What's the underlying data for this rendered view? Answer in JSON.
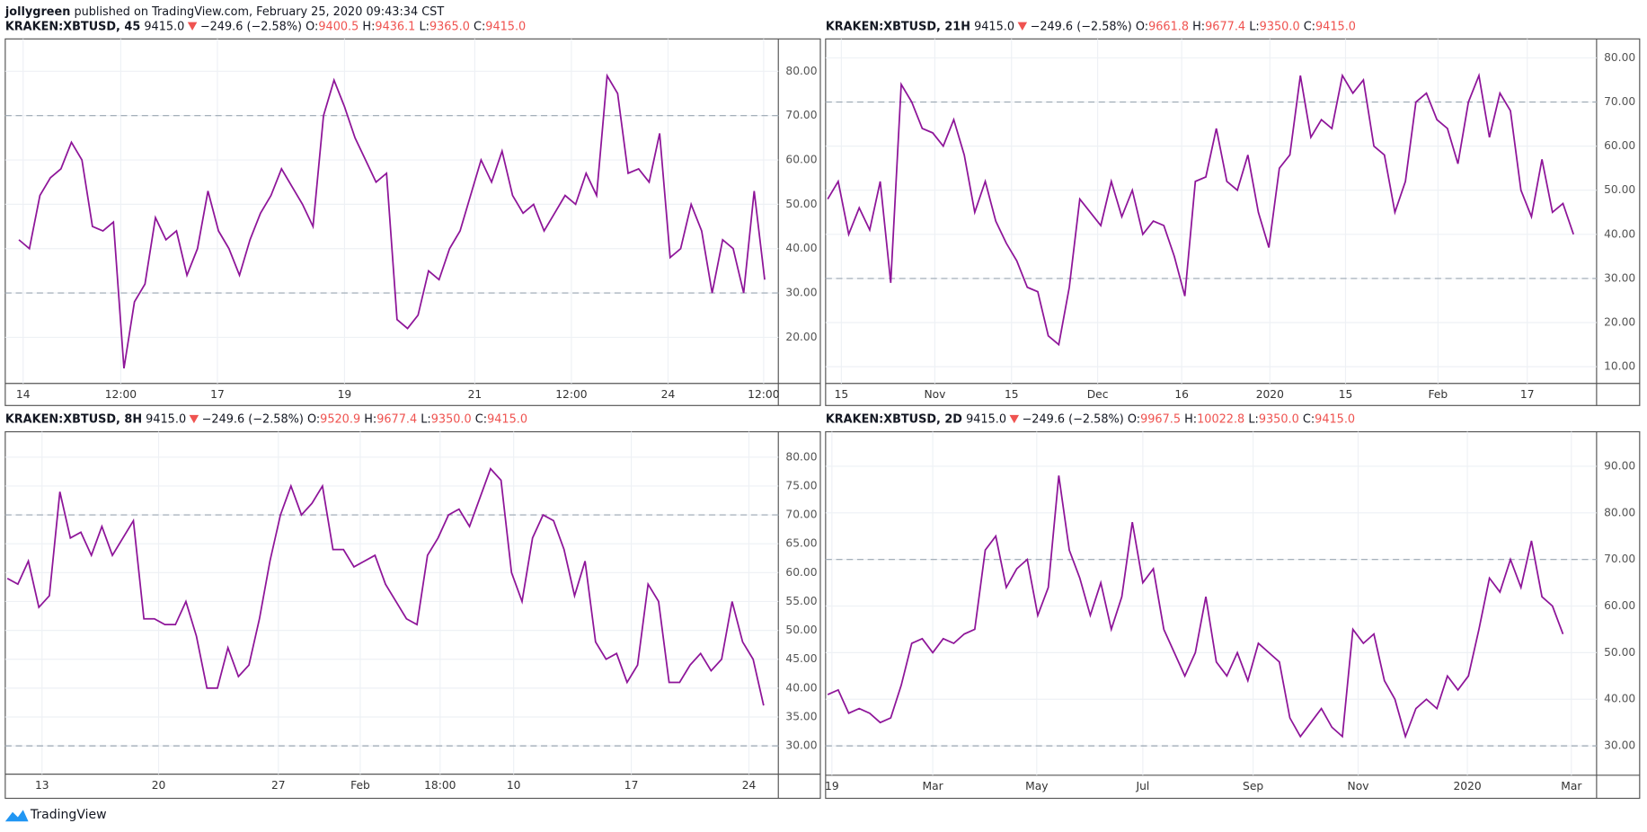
{
  "author": "jollygreen",
  "published": "published on TradingView.com, February 25, 2020 09:43:34 CST",
  "brand": "TradingView",
  "chart_data": [
    {
      "type": "line",
      "header": {
        "symbol": "KRAKEN:XBTUSD, 45",
        "price": "9415.0",
        "change": "−249.6 (−2.58%)",
        "ohlc": [
          {
            "label": "O:",
            "value": "9400.5"
          },
          {
            "label": "H:",
            "value": "9436.1"
          },
          {
            "label": "L:",
            "value": "9365.0"
          },
          {
            "label": "C:",
            "value": "9415.0"
          }
        ]
      },
      "color": "#8e1599",
      "grid": true,
      "bands": [
        30,
        70
      ],
      "ylim": [
        9.6,
        87.3
      ],
      "yticks": [
        {
          "value": 20,
          "label": "20.00"
        },
        {
          "value": 30,
          "label": "30.00"
        },
        {
          "value": 40,
          "label": "40.00"
        },
        {
          "value": 50,
          "label": "50.00"
        },
        {
          "value": 60,
          "label": "60.00"
        },
        {
          "value": 70,
          "label": "70.00"
        },
        {
          "value": 80,
          "label": "80.00"
        }
      ],
      "xlim": [
        -1.3,
        72.3
      ],
      "xticks": [
        {
          "value": 0.4,
          "label": "14"
        },
        {
          "value": 9.7,
          "label": "12:00"
        },
        {
          "value": 18.9,
          "label": "17"
        },
        {
          "value": 31,
          "label": "19"
        },
        {
          "value": 43.4,
          "label": "21"
        },
        {
          "value": 52.6,
          "label": "12:00"
        },
        {
          "value": 61.8,
          "label": "24"
        },
        {
          "value": 70.9,
          "label": "12:00"
        }
      ],
      "values": [
        42,
        40,
        52,
        56,
        58,
        64,
        60,
        45,
        44,
        46,
        13,
        28,
        32,
        47,
        42,
        44,
        34,
        40,
        53,
        44,
        40,
        34,
        42,
        48,
        52,
        58,
        54,
        50,
        45,
        70,
        78,
        72,
        65,
        60,
        55,
        57,
        24,
        22,
        25,
        35,
        33,
        40,
        44,
        52,
        60,
        55,
        62,
        52,
        48,
        50,
        44,
        48,
        52,
        50,
        57,
        52,
        79,
        75,
        57,
        58,
        55,
        66,
        38,
        40,
        50,
        44,
        30,
        42,
        40,
        30,
        53,
        33
      ]
    },
    {
      "type": "line",
      "header": {
        "symbol": "KRAKEN:XBTUSD, 21H",
        "price": "9415.0",
        "change": "−249.6 (−2.58%)",
        "ohlc": [
          {
            "label": "O:",
            "value": "9661.8"
          },
          {
            "label": "H:",
            "value": "9677.4"
          },
          {
            "label": "L:",
            "value": "9350.0"
          },
          {
            "label": "C:",
            "value": "9415.0"
          }
        ]
      },
      "color": "#8e1599",
      "grid": true,
      "bands": [
        30,
        70
      ],
      "ylim": [
        6.2,
        84.3
      ],
      "yticks": [
        {
          "value": 10,
          "label": "10.00"
        },
        {
          "value": 20,
          "label": "20.00"
        },
        {
          "value": 30,
          "label": "30.00"
        },
        {
          "value": 40,
          "label": "40.00"
        },
        {
          "value": 50,
          "label": "50.00"
        },
        {
          "value": 60,
          "label": "60.00"
        },
        {
          "value": 70,
          "label": "70.00"
        },
        {
          "value": 80,
          "label": "80.00"
        }
      ],
      "xlim": [
        -0.2,
        73.2
      ],
      "xticks": [
        {
          "value": 1.3,
          "label": "15"
        },
        {
          "value": 10.2,
          "label": "Nov"
        },
        {
          "value": 17.5,
          "label": "15"
        },
        {
          "value": 25.7,
          "label": "Dec"
        },
        {
          "value": 33.7,
          "label": "16"
        },
        {
          "value": 42.1,
          "label": "2020"
        },
        {
          "value": 49.3,
          "label": "15"
        },
        {
          "value": 58.1,
          "label": "Feb"
        },
        {
          "value": 66.6,
          "label": "17"
        }
      ],
      "values": [
        48,
        52,
        40,
        46,
        41,
        52,
        29,
        74,
        70,
        64,
        63,
        60,
        66,
        58,
        45,
        52,
        43,
        38,
        34,
        28,
        27,
        17,
        15,
        28,
        48,
        45,
        42,
        52,
        44,
        50,
        40,
        43,
        42,
        35,
        26,
        52,
        53,
        64,
        52,
        50,
        58,
        45,
        37,
        55,
        58,
        76,
        62,
        66,
        64,
        76,
        72,
        75,
        60,
        58,
        45,
        52,
        70,
        72,
        66,
        64,
        56,
        70,
        76,
        62,
        72,
        68,
        50,
        44,
        57,
        45,
        47,
        40
      ]
    },
    {
      "type": "line",
      "header": {
        "symbol": "KRAKEN:XBTUSD, 8H",
        "price": "9415.0",
        "change": "−249.6 (−2.58%)",
        "ohlc": [
          {
            "label": "O:",
            "value": "9520.9"
          },
          {
            "label": "H:",
            "value": "9677.4"
          },
          {
            "label": "L:",
            "value": "9350.0"
          },
          {
            "label": "C:",
            "value": "9415.0"
          }
        ]
      },
      "color": "#8e1599",
      "grid": true,
      "bands": [
        30,
        70
      ],
      "ylim": [
        25.1,
        84.4
      ],
      "yticks": [
        {
          "value": 30,
          "label": "30.00"
        },
        {
          "value": 35,
          "label": "35.00"
        },
        {
          "value": 40,
          "label": "40.00"
        },
        {
          "value": 45,
          "label": "45.00"
        },
        {
          "value": 50,
          "label": "50.00"
        },
        {
          "value": 55,
          "label": "55.00"
        },
        {
          "value": 60,
          "label": "60.00"
        },
        {
          "value": 65,
          "label": "65.00"
        },
        {
          "value": 70,
          "label": "70.00"
        },
        {
          "value": 75,
          "label": "75.00"
        },
        {
          "value": 80,
          "label": "80.00"
        }
      ],
      "xlim": [
        -0.2,
        73.4
      ],
      "xticks": [
        {
          "value": 3.3,
          "label": "13"
        },
        {
          "value": 14.4,
          "label": "20"
        },
        {
          "value": 25.8,
          "label": "27"
        },
        {
          "value": 33.6,
          "label": "Feb"
        },
        {
          "value": 41.2,
          "label": "18:00"
        },
        {
          "value": 48.2,
          "label": "10"
        },
        {
          "value": 59.4,
          "label": "17"
        },
        {
          "value": 70.6,
          "label": "24"
        }
      ],
      "values": [
        59,
        58,
        62,
        54,
        56,
        74,
        66,
        67,
        63,
        68,
        63,
        66,
        69,
        52,
        52,
        51,
        51,
        55,
        49,
        40,
        40,
        47,
        42,
        44,
        52,
        62,
        70,
        75,
        70,
        72,
        75,
        64,
        64,
        61,
        62,
        63,
        58,
        55,
        52,
        51,
        63,
        66,
        70,
        71,
        68,
        73,
        78,
        76,
        60,
        55,
        66,
        70,
        69,
        64,
        56,
        62,
        48,
        45,
        46,
        41,
        44,
        58,
        55,
        41,
        41,
        44,
        46,
        43,
        45,
        55,
        48,
        45,
        37
      ]
    },
    {
      "type": "line",
      "header": {
        "symbol": "KRAKEN:XBTUSD, 2D",
        "price": "9415.0",
        "change": "−249.6 (−2.58%)",
        "ohlc": [
          {
            "label": "O:",
            "value": "9967.5"
          },
          {
            "label": "H:",
            "value": "10022.8"
          },
          {
            "label": "L:",
            "value": "9350.0"
          },
          {
            "label": "C:",
            "value": "9415.0"
          }
        ]
      },
      "color": "#8e1599",
      "grid": true,
      "bands": [
        30,
        70
      ],
      "ylim": [
        23.7,
        97.4
      ],
      "yticks": [
        {
          "value": 30,
          "label": "30.00"
        },
        {
          "value": 40,
          "label": "40.00"
        },
        {
          "value": 50,
          "label": "50.00"
        },
        {
          "value": 60,
          "label": "60.00"
        },
        {
          "value": 70,
          "label": "70.00"
        },
        {
          "value": 80,
          "label": "80.00"
        },
        {
          "value": 90,
          "label": "90.00"
        }
      ],
      "xlim": [
        -0.2,
        73.2
      ],
      "xticks": [
        {
          "value": 0.4,
          "label": "19"
        },
        {
          "value": 10,
          "label": "Mar"
        },
        {
          "value": 19.9,
          "label": "May"
        },
        {
          "value": 30,
          "label": "Jul"
        },
        {
          "value": 40.5,
          "label": "Sep"
        },
        {
          "value": 50.5,
          "label": "Nov"
        },
        {
          "value": 60.9,
          "label": "2020"
        },
        {
          "value": 70.8,
          "label": "Mar"
        }
      ],
      "values": [
        41,
        42,
        37,
        38,
        37,
        35,
        36,
        43,
        52,
        53,
        50,
        53,
        52,
        54,
        55,
        72,
        75,
        64,
        68,
        70,
        58,
        64,
        88,
        72,
        66,
        58,
        65,
        55,
        62,
        78,
        65,
        68,
        55,
        50,
        45,
        50,
        62,
        48,
        45,
        50,
        44,
        52,
        50,
        48,
        36,
        32,
        35,
        38,
        34,
        32,
        55,
        52,
        54,
        44,
        40,
        32,
        38,
        40,
        38,
        45,
        42,
        45,
        55,
        66,
        63,
        70,
        64,
        74,
        62,
        60,
        54
      ]
    }
  ]
}
